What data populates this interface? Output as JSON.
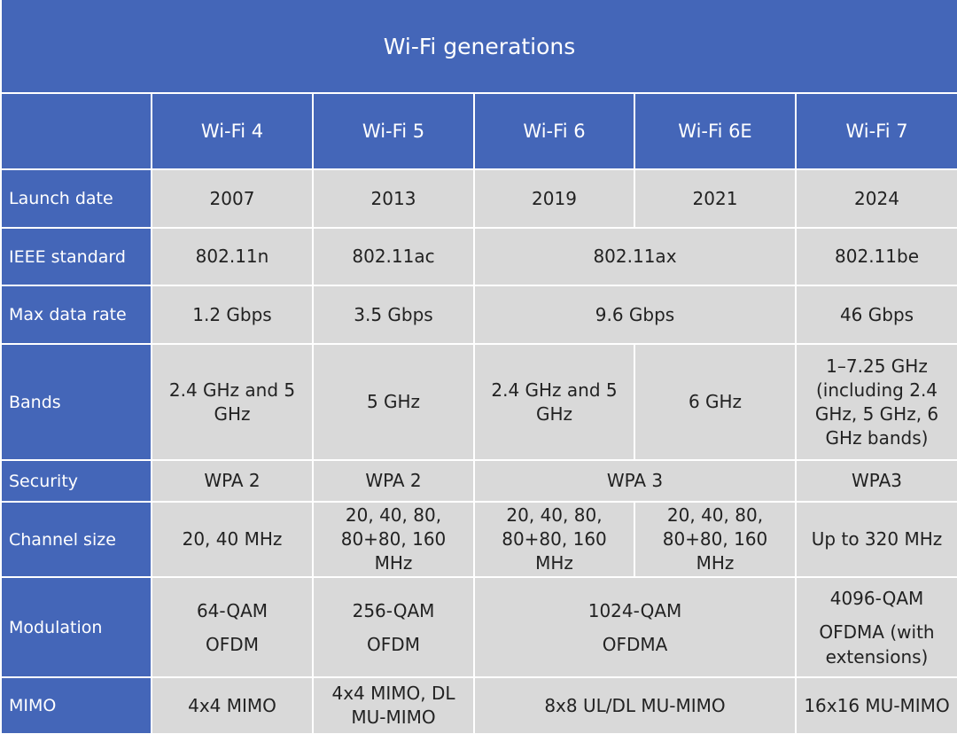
{
  "title": "Wi-Fi generations",
  "columns": [
    "Wi-Fi 4",
    "Wi-Fi 5",
    "Wi-Fi 6",
    "Wi-Fi 6E",
    "Wi-Fi 7"
  ],
  "rows": {
    "launch_date": {
      "label": "Launch date",
      "wifi4": "2007",
      "wifi5": "2013",
      "wifi6": "2019",
      "wifi6e": "2021",
      "wifi7": "2024"
    },
    "ieee_standard": {
      "label": "IEEE standard",
      "wifi4": "802.11n",
      "wifi5": "802.11ac",
      "wifi6_6e": "802.11ax",
      "wifi7": "802.11be"
    },
    "max_data_rate": {
      "label": "Max data rate",
      "wifi4": "1.2 Gbps",
      "wifi5": "3.5 Gbps",
      "wifi6_6e": "9.6 Gbps",
      "wifi7": "46 Gbps"
    },
    "bands": {
      "label": "Bands",
      "wifi4": "2.4 GHz and 5 GHz",
      "wifi5": "5 GHz",
      "wifi6": "2.4 GHz and 5 GHz",
      "wifi6e": "6 GHz",
      "wifi7": "1–7.25 GHz (including 2.4 GHz, 5 GHz, 6 GHz bands)"
    },
    "security": {
      "label": "Security",
      "wifi4": "WPA 2",
      "wifi5": "WPA 2",
      "wifi6_6e": "WPA 3",
      "wifi7": "WPA3"
    },
    "channel_size": {
      "label": "Channel size",
      "wifi4": "20, 40 MHz",
      "wifi5": "20, 40, 80, 80+80, 160 MHz",
      "wifi6": "20, 40, 80, 80+80, 160 MHz",
      "wifi6e": "20, 40, 80, 80+80, 160 MHz",
      "wifi7": "Up to 320 MHz"
    },
    "modulation": {
      "label": "Modulation",
      "wifi4": [
        "64-QAM",
        "OFDM"
      ],
      "wifi5": [
        "256-QAM",
        "OFDM"
      ],
      "wifi6_6e": [
        "1024-QAM",
        "OFDMA"
      ],
      "wifi7": [
        "4096-QAM",
        "OFDMA (with extensions)"
      ]
    },
    "mimo": {
      "label": "MIMO",
      "wifi4": "4x4 MIMO",
      "wifi5": "4x4 MIMO, DL MU-MIMO",
      "wifi6_6e": "8x8 UL/DL MU-MIMO",
      "wifi7": "16x16 MU-MIMO"
    }
  },
  "colors": {
    "header": "#4466b8",
    "cell": "#d9d9d9",
    "grid": "#ffffff"
  }
}
